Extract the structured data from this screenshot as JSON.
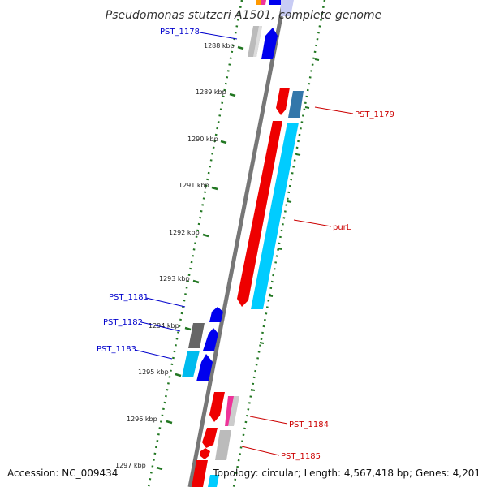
{
  "map": {
    "title": "Pseudomonas stutzeri A1501, complete genome",
    "accession": "Accession: NC_009434",
    "topology": "Topology: circular; Length: 4,567,418 bp; Genes: 4,201",
    "ticks": [
      "1288 kbp",
      "1289 kbp",
      "1290 kbp",
      "1291 kbp",
      "1292 kbp",
      "1293 kbp",
      "1294 kbp",
      "1295 kbp",
      "1296 kbp",
      "1297 kbp"
    ],
    "gene_labels": {
      "pst_1178": "PST_1178",
      "pst_1179": "PST_1179",
      "purl": "purL",
      "pst_1181": "PST_1181",
      "pst_1182": "PST_1182",
      "pst_1183": "PST_1183",
      "pst_1184": "PST_1184",
      "pst_1185": "PST_1185"
    },
    "colors": {
      "forward_label": "#0000cc",
      "reverse_label": "#cc0000",
      "tick": "#227722",
      "backbone": "#777777"
    }
  }
}
